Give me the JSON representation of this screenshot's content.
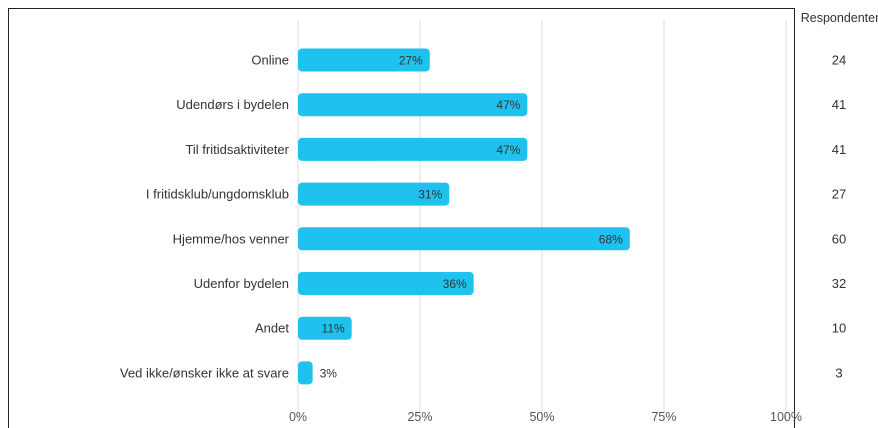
{
  "chart_data": {
    "type": "bar",
    "orientation": "horizontal",
    "categories": [
      "Online",
      "Udendørs i bydelen",
      "Til fritidsaktiviteter",
      "I fritidsklub/ungdomsklub",
      "Hjemme/hos venner",
      "Udenfor bydelen",
      "Andet",
      "Ved ikke/ønsker ikke at svare"
    ],
    "values": [
      27,
      47,
      47,
      31,
      68,
      36,
      11,
      3
    ],
    "value_labels": [
      "27%",
      "47%",
      "47%",
      "31%",
      "68%",
      "36%",
      "11%",
      "3%"
    ],
    "respondents_header": "Respondenter",
    "respondents": [
      "24",
      "41",
      "41",
      "27",
      "60",
      "32",
      "10",
      "3"
    ],
    "xticks": [
      "0%",
      "25%",
      "50%",
      "75%",
      "100%"
    ],
    "xlim": [
      0,
      100
    ],
    "grid": true,
    "bar_color": "#1fc2ee",
    "grid_color": "#dddddd"
  }
}
